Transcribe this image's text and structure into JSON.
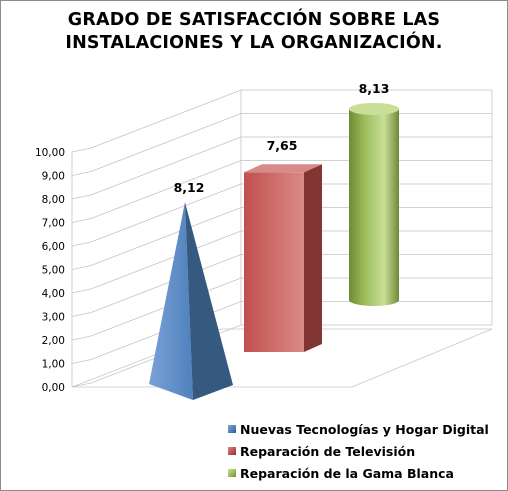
{
  "chart_data": {
    "type": "bar",
    "title_lines": [
      "GRADO DE SATISFACCIÓN SOBRE LAS",
      "INSTALACIONES Y LA ORGANIZACIÓN."
    ],
    "ylim": [
      0,
      10
    ],
    "yticks": [
      "0,00",
      "1,00",
      "2,00",
      "3,00",
      "4,00",
      "5,00",
      "6,00",
      "7,00",
      "8,00",
      "9,00",
      "10,00"
    ],
    "grid": true,
    "legend_position": "bottom-right",
    "series": [
      {
        "name": "Nuevas Tecnologías y Hogar Digital",
        "value": 8.12,
        "label": "8,12",
        "shape": "pyramid",
        "color": "#4f81bd",
        "color_dark": "#36597f",
        "color_light": "#7aa1d6"
      },
      {
        "name": "Reparación de Televisión",
        "value": 7.65,
        "label": "7,65",
        "shape": "box",
        "color": "#c0504d",
        "color_dark": "#823634",
        "color_light": "#d98a88"
      },
      {
        "name": "Reparación de la Gama Blanca",
        "value": 8.13,
        "label": "8,13",
        "shape": "cylinder",
        "color": "#9bbb59",
        "color_dark": "#6e8a36",
        "color_light": "#c9df98"
      }
    ]
  }
}
